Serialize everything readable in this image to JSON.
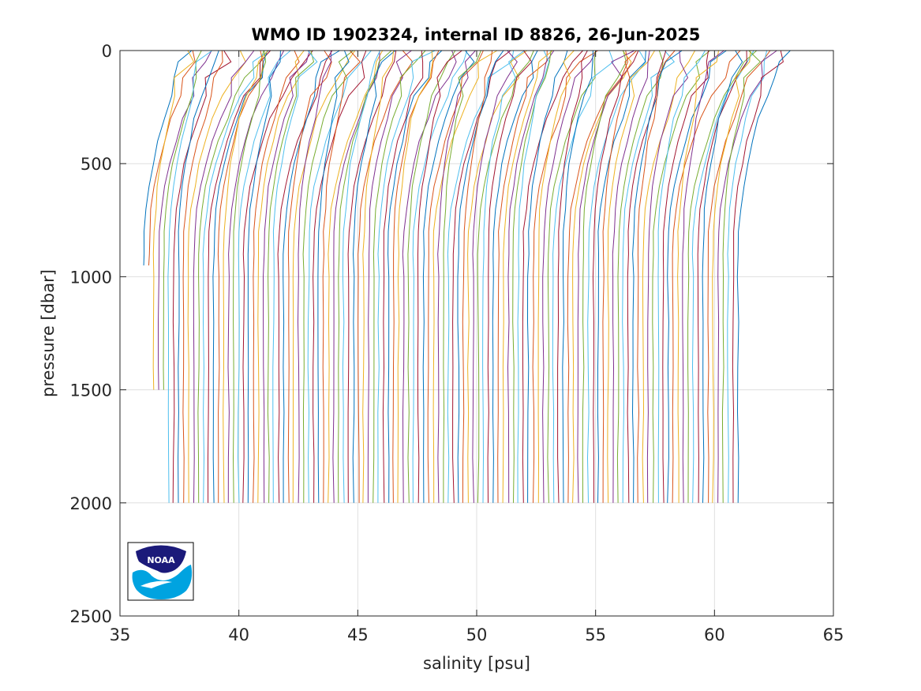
{
  "chart_data": {
    "type": "line",
    "title": "WMO ID 1902324, internal ID 8826, 26-Jun-2025",
    "xlabel": "salinity [psu]",
    "ylabel": "pressure [dbar]",
    "xlim": [
      35,
      65
    ],
    "ylim": [
      0,
      2500
    ],
    "y_reversed": true,
    "grid": true,
    "xticks": [
      "35",
      "40",
      "45",
      "50",
      "55",
      "60",
      "65"
    ],
    "yticks": [
      "0",
      "500",
      "1000",
      "1500",
      "2000",
      "2500"
    ],
    "series_count": 120,
    "profile_pressures": [
      0,
      50,
      120,
      200,
      300,
      400,
      500,
      600,
      700,
      800,
      900,
      1000,
      1200,
      1400,
      1600,
      1800,
      2000
    ],
    "deep_salinity_first": 36.0,
    "deep_salinity_last": 61.0,
    "deep_salinity_step": 0.21,
    "colors": [
      "#0072BD",
      "#D95319",
      "#EDB120",
      "#7E2F8E",
      "#77AC30",
      "#4DBEEE",
      "#A2142F"
    ],
    "logo": {
      "name": "noaa-logo",
      "text": "NOAA",
      "colors": [
        "#1B1A7A",
        "#00A3E0",
        "#ffffff"
      ]
    }
  }
}
